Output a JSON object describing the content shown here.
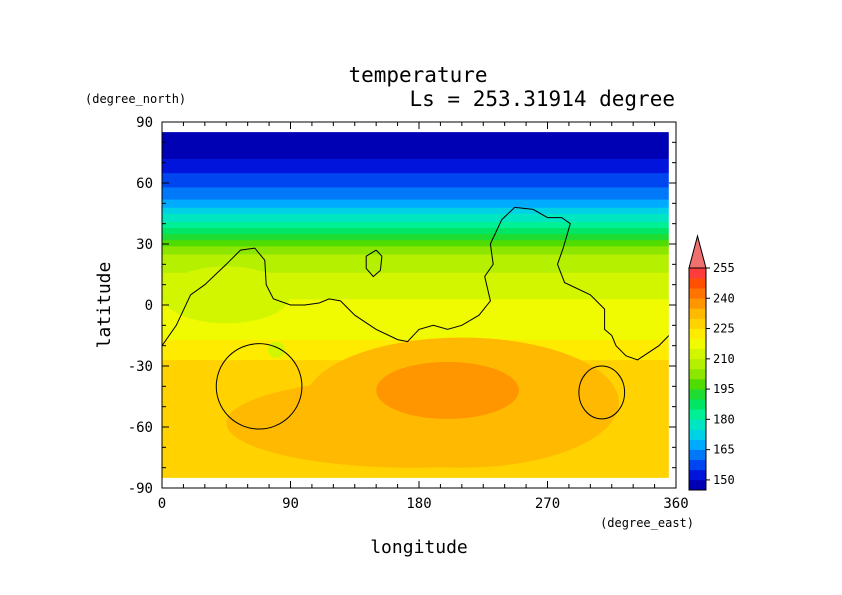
{
  "chart_data": {
    "type": "heatmap",
    "title": "temperature",
    "subtitle": "Ls = 253.31914 degree",
    "xlabel": "longitude",
    "ylabel": "latitude",
    "x_units": "(degree_east)",
    "y_units": "(degree_north)",
    "xlim": [
      0,
      360
    ],
    "ylim": [
      -90,
      90
    ],
    "x_ticks": [
      0,
      90,
      180,
      270,
      360
    ],
    "y_ticks": [
      -90,
      -60,
      -30,
      0,
      30,
      60,
      90
    ],
    "data_lat_range": [
      -85,
      85
    ],
    "data_lon_range": [
      0,
      355
    ],
    "colorbar": {
      "levels": [
        145,
        150,
        155,
        160,
        165,
        170,
        175,
        180,
        185,
        190,
        195,
        200,
        205,
        210,
        215,
        220,
        225,
        230,
        235,
        240,
        245,
        250,
        255,
        260
      ],
      "colors": [
        "#0000b4",
        "#0014dc",
        "#0046f0",
        "#0078f8",
        "#00aaff",
        "#00d2e6",
        "#00e6c3",
        "#00f096",
        "#00e664",
        "#1edc32",
        "#50dc00",
        "#8ce600",
        "#b4f000",
        "#d2f500",
        "#f0fa00",
        "#ffeb00",
        "#ffd200",
        "#ffb900",
        "#ff9600",
        "#ff7300",
        "#ff5000",
        "#ff3c3c",
        "#f07070"
      ],
      "tick_labels": [
        150,
        165,
        180,
        195,
        210,
        225,
        240,
        255
      ],
      "extend": "max"
    },
    "temperature_profile": {
      "lat": [
        -85,
        -80,
        -75,
        -70,
        -60,
        -50,
        -40,
        -30,
        -25,
        -20,
        -10,
        0,
        10,
        20,
        25,
        30,
        35,
        40,
        45,
        50,
        55,
        60,
        65,
        70,
        75,
        80,
        85
      ],
      "value": [
        229,
        229,
        228,
        227,
        227,
        227,
        227,
        227,
        224,
        221,
        218,
        216,
        213,
        208,
        205,
        199,
        190,
        182,
        175,
        167,
        162,
        158,
        155,
        151,
        148,
        147,
        146
      ]
    },
    "warm_regions": [
      {
        "lon": 210,
        "lat": -48,
        "rlon": 110,
        "rlat": 32,
        "value": 233
      },
      {
        "lon": 175,
        "lat": -58,
        "rlon": 130,
        "rlat": 22,
        "value": 232
      },
      {
        "lon": 200,
        "lat": -42,
        "rlon": 50,
        "rlat": 14,
        "value": 238
      }
    ],
    "cool_regions": [
      {
        "lon": 45,
        "lat": 5,
        "rlon": 45,
        "rlat": 14,
        "value": 212
      },
      {
        "lon": 80,
        "lat": -22,
        "rlon": 6,
        "rlat": 4,
        "value": 212
      }
    ],
    "coastlines": [
      [
        [
          0,
          -20
        ],
        [
          10,
          -10
        ],
        [
          20,
          5
        ],
        [
          30,
          10
        ],
        [
          45,
          20
        ],
        [
          55,
          27
        ],
        [
          65,
          28
        ],
        [
          72,
          22
        ],
        [
          73,
          10
        ],
        [
          78,
          3
        ],
        [
          90,
          0
        ],
        [
          100,
          0
        ],
        [
          110,
          1
        ],
        [
          117,
          3
        ],
        [
          125,
          2
        ],
        [
          135,
          -5
        ],
        [
          150,
          -12
        ],
        [
          165,
          -17
        ],
        [
          172,
          -18
        ],
        [
          180,
          -12
        ],
        [
          190,
          -10
        ],
        [
          200,
          -12
        ],
        [
          210,
          -10
        ],
        [
          222,
          -5
        ],
        [
          230,
          2
        ],
        [
          226,
          14
        ],
        [
          232,
          20
        ],
        [
          230,
          30
        ],
        [
          238,
          42
        ],
        [
          247,
          48
        ],
        [
          260,
          47
        ],
        [
          270,
          43
        ],
        [
          280,
          43
        ],
        [
          286,
          40
        ],
        [
          281,
          28
        ],
        [
          277,
          20
        ],
        [
          282,
          11
        ],
        [
          300,
          5
        ],
        [
          310,
          -2
        ],
        [
          310,
          -12
        ],
        [
          315,
          -15
        ],
        [
          318,
          -20
        ],
        [
          325,
          -25
        ],
        [
          333,
          -27
        ],
        [
          348,
          -20
        ],
        [
          355,
          -15
        ]
      ],
      [
        [
          150,
          27
        ],
        [
          143,
          24
        ],
        [
          143,
          18
        ],
        [
          148,
          14
        ],
        [
          153,
          17
        ],
        [
          154,
          24
        ],
        [
          150,
          27
        ]
      ]
    ],
    "crater_contours": [
      {
        "lon": 68,
        "lat": -40,
        "rlon": 30,
        "rlat": 21
      },
      {
        "lon": 308,
        "lat": -43,
        "rlon": 16,
        "rlat": 13
      }
    ]
  }
}
